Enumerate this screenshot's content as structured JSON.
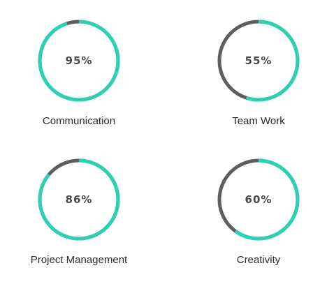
{
  "colors": {
    "progress": "#2ad1b3",
    "track": "#5e5e5e"
  },
  "skills": [
    {
      "label": "Communication",
      "percent_text": "95%",
      "value": 95
    },
    {
      "label": "Team Work",
      "percent_text": "55%",
      "value": 55
    },
    {
      "label": "Project Management",
      "percent_text": "86%",
      "value": 86
    },
    {
      "label": "Creativity",
      "percent_text": "60%",
      "value": 60
    }
  ]
}
